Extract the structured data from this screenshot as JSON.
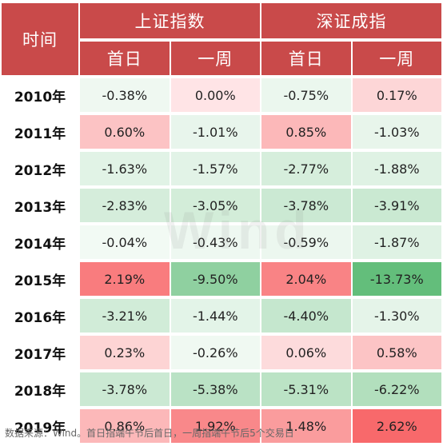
{
  "header": {
    "time_label": "时间",
    "groups": [
      "上证指数",
      "深证成指"
    ],
    "subcols": [
      "首日",
      "一周",
      "首日",
      "一周"
    ]
  },
  "rows": [
    {
      "year": "2010年",
      "values": [
        "-0.38%",
        "0.00%",
        "-0.75%",
        "0.17%"
      ],
      "nums": [
        -0.38,
        0.0,
        -0.75,
        0.17
      ]
    },
    {
      "year": "2011年",
      "values": [
        "0.60%",
        "-1.01%",
        "0.85%",
        "-1.03%"
      ],
      "nums": [
        0.6,
        -1.01,
        0.85,
        -1.03
      ]
    },
    {
      "year": "2012年",
      "values": [
        "-1.63%",
        "-1.57%",
        "-2.77%",
        "-1.88%"
      ],
      "nums": [
        -1.63,
        -1.57,
        -2.77,
        -1.88
      ]
    },
    {
      "year": "2013年",
      "values": [
        "-2.83%",
        "-3.05%",
        "-3.78%",
        "-3.91%"
      ],
      "nums": [
        -2.83,
        -3.05,
        -3.78,
        -3.91
      ]
    },
    {
      "year": "2014年",
      "values": [
        "-0.04%",
        "-0.43%",
        "-0.59%",
        "-1.87%"
      ],
      "nums": [
        -0.04,
        -0.43,
        -0.59,
        -1.87
      ]
    },
    {
      "year": "2015年",
      "values": [
        "2.19%",
        "-9.50%",
        "2.04%",
        "-13.73%"
      ],
      "nums": [
        2.19,
        -9.5,
        2.04,
        -13.73
      ]
    },
    {
      "year": "2016年",
      "values": [
        "-3.21%",
        "-1.44%",
        "-4.40%",
        "-1.30%"
      ],
      "nums": [
        -3.21,
        -1.44,
        -4.4,
        -1.3
      ]
    },
    {
      "year": "2017年",
      "values": [
        "0.23%",
        "-0.26%",
        "0.06%",
        "0.58%"
      ],
      "nums": [
        0.23,
        -0.26,
        0.06,
        0.58
      ]
    },
    {
      "year": "2018年",
      "values": [
        "-3.78%",
        "-5.38%",
        "-5.31%",
        "-6.22%"
      ],
      "nums": [
        -3.78,
        -5.38,
        -5.31,
        -6.22
      ]
    },
    {
      "year": "2019年",
      "values": [
        "0.86%",
        "1.92%",
        "1.48%",
        "2.62%"
      ],
      "nums": [
        0.86,
        1.92,
        1.48,
        2.62
      ]
    }
  ],
  "colors": {
    "header_bg": "#c94a4a",
    "positive": "#f8696b",
    "negative": "#63be7b",
    "neutral": "#ffffff"
  },
  "watermark": "Wind",
  "source_note": "数据来源：Wind。首日指端午节后首日，一周指端午节后5个交易日"
}
